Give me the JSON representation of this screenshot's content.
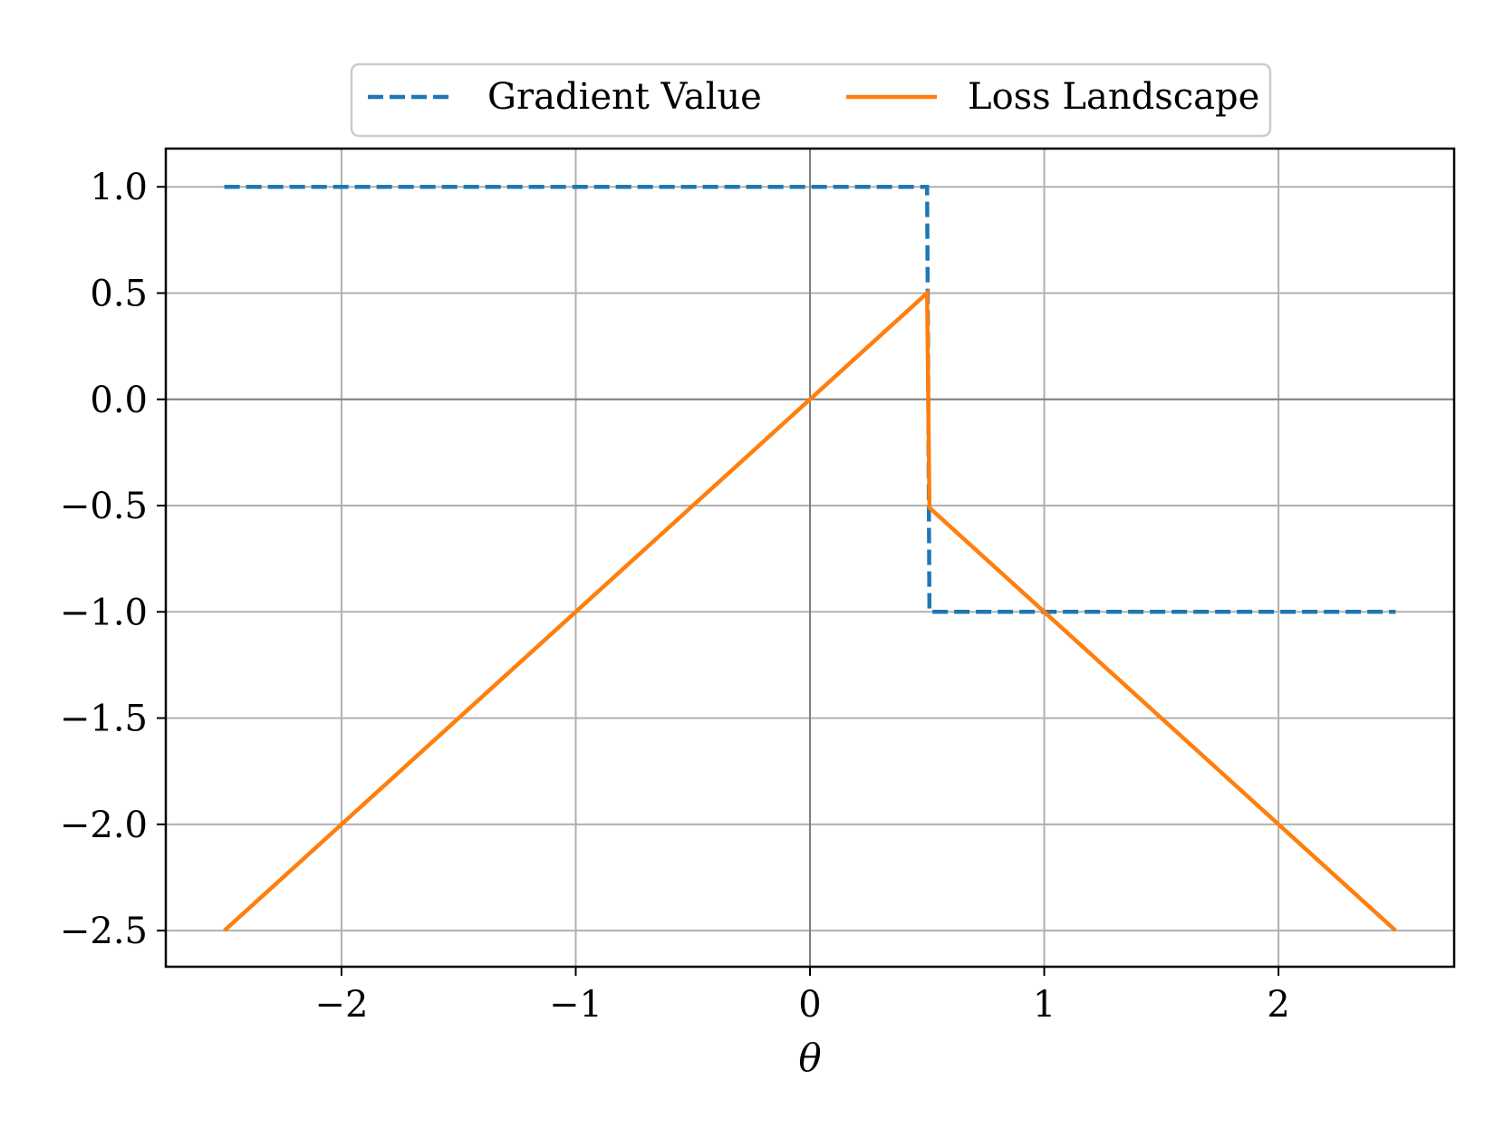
{
  "chart_data": {
    "type": "line",
    "title": "",
    "xlabel": "θ",
    "ylabel": "",
    "xlim": [
      -2.75,
      2.75
    ],
    "ylim": [
      -2.67,
      1.18
    ],
    "xticks": [
      -2,
      -1,
      0,
      1,
      2
    ],
    "yticks": [
      1.0,
      0.5,
      0.0,
      -0.5,
      -1.0,
      -1.5,
      -2.0,
      -2.5
    ],
    "xtick_labels": [
      "−2",
      "−1",
      "0",
      "1",
      "2"
    ],
    "ytick_labels": [
      "1.0",
      "0.5",
      "0.0",
      "−0.5",
      "−1.0",
      "−1.5",
      "−2.0",
      "−2.5"
    ],
    "grid": true,
    "legend_position": "top-center, above plot",
    "series": [
      {
        "name": "Gradient Value",
        "style": "dashed",
        "color": "#1f77b4",
        "x": [
          -2.5,
          0.5,
          0.51,
          2.5
        ],
        "y": [
          1.0,
          1.0,
          -1.0,
          -1.0
        ]
      },
      {
        "name": "Loss Landscape",
        "style": "solid",
        "color": "#ff7f0e",
        "x": [
          -2.5,
          0.5,
          0.51,
          2.5
        ],
        "y": [
          -2.5,
          0.5,
          -0.51,
          -2.5
        ]
      }
    ]
  }
}
